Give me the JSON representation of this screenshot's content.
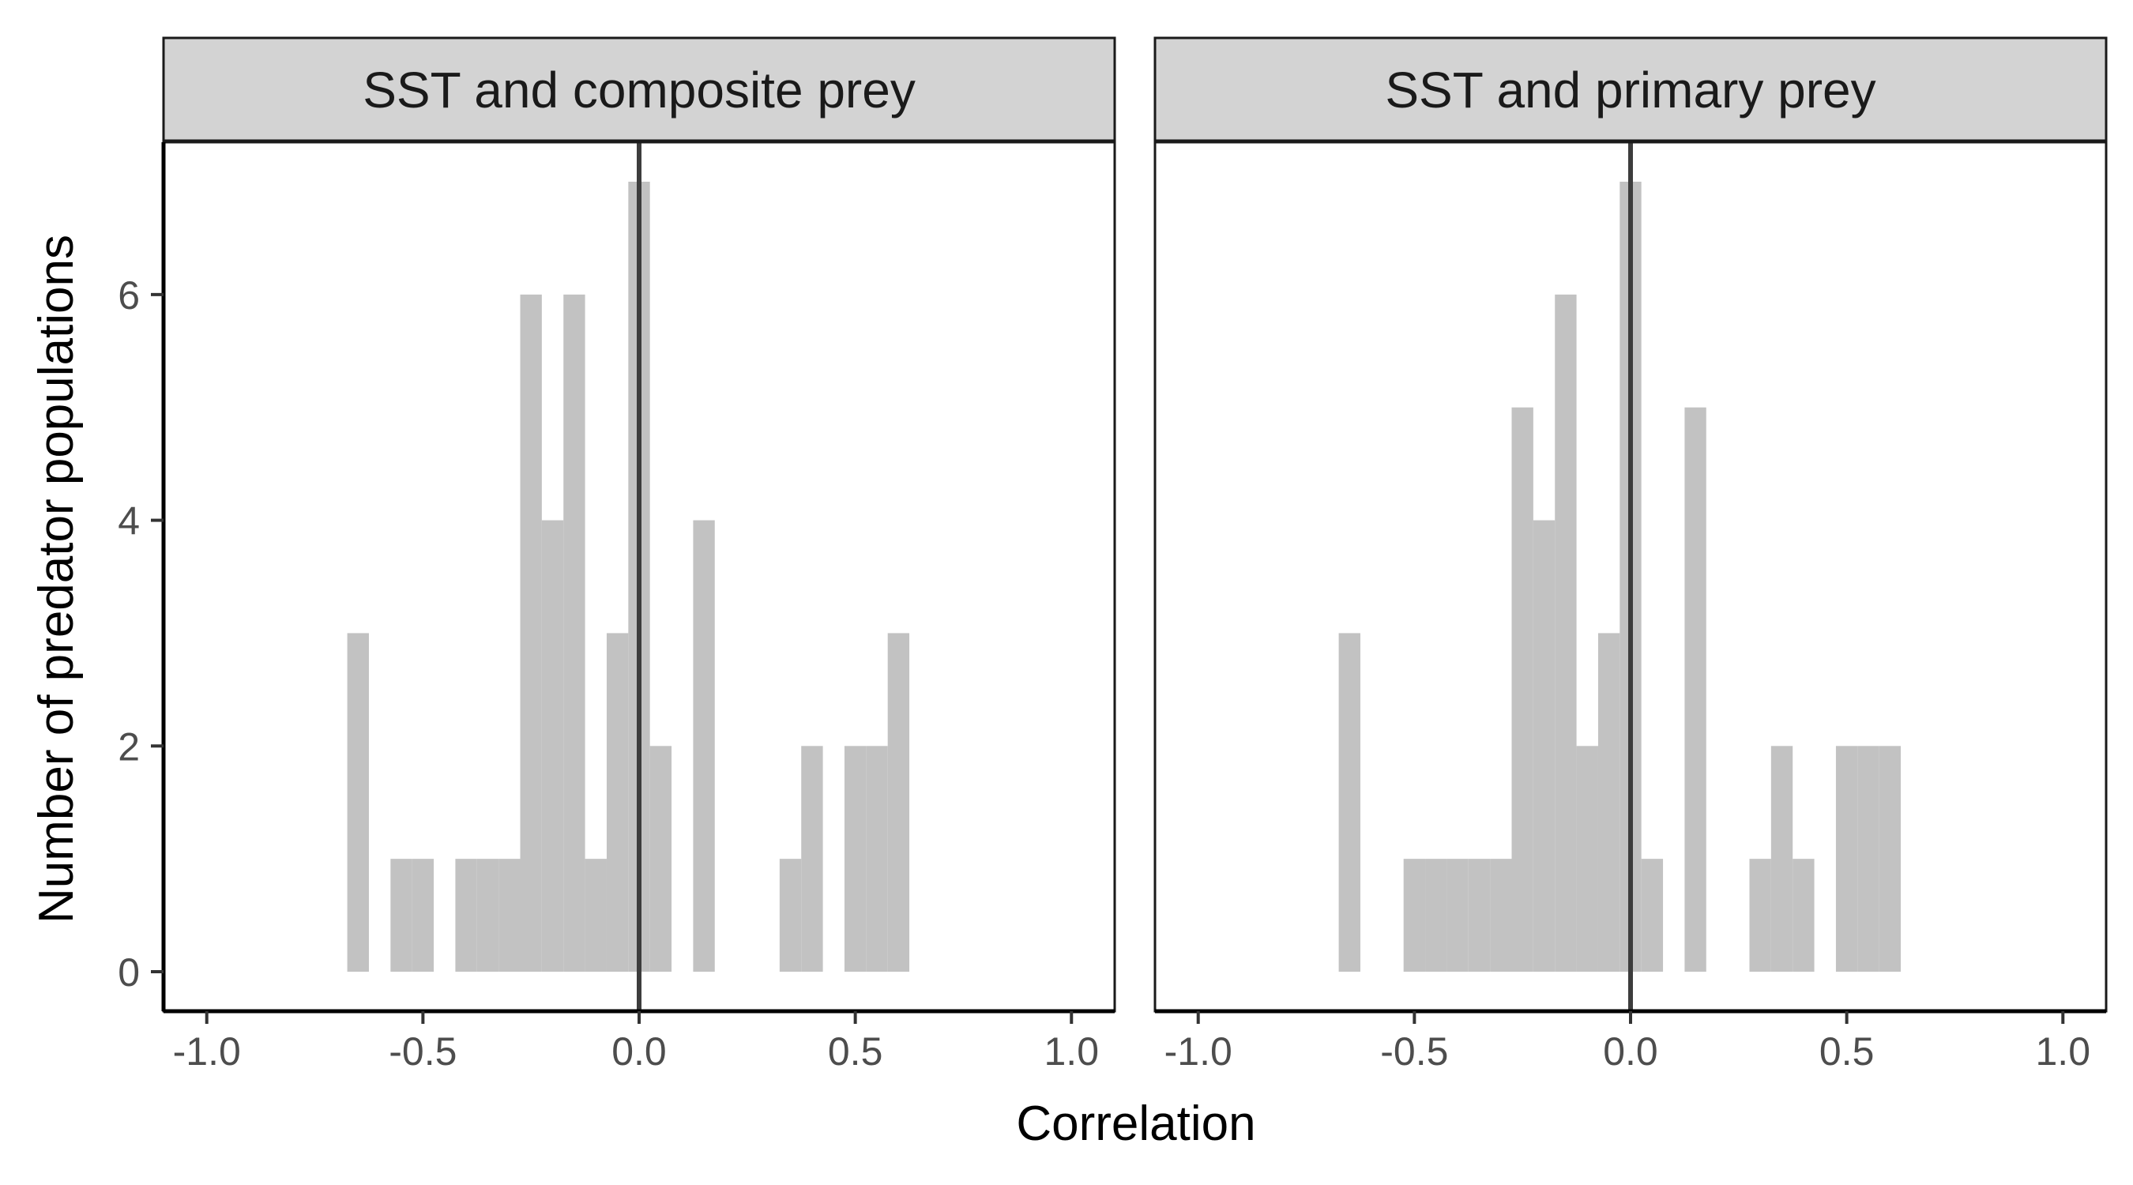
{
  "chart_data": [
    {
      "type": "bar",
      "title": "SST and composite prey",
      "xlabel": "Correlation",
      "ylabel": "Number of predator populations",
      "xlim": [
        -1.1,
        1.1
      ],
      "ylim": [
        -0.35,
        7.35
      ],
      "x_ticks": [
        "-1.0",
        "-0.5",
        "0.0",
        "0.5",
        "1.0"
      ],
      "y_ticks": [
        "0",
        "2",
        "4",
        "6"
      ],
      "bin_width": 0.05,
      "bin_centers": [
        -0.65,
        -0.55,
        -0.5,
        -0.4,
        -0.35,
        -0.3,
        -0.25,
        -0.2,
        -0.15,
        -0.1,
        -0.05,
        0.0,
        0.05,
        0.15,
        0.35,
        0.4,
        0.5,
        0.55,
        0.6
      ],
      "counts": [
        3,
        1,
        1,
        1,
        1,
        1,
        6,
        4,
        6,
        1,
        3,
        7,
        2,
        4,
        1,
        2,
        2,
        2,
        3
      ],
      "reference_line_x": 0
    },
    {
      "type": "bar",
      "title": "SST and primary prey",
      "xlabel": "Correlation",
      "ylabel": "Number of predator populations",
      "xlim": [
        -1.1,
        1.1
      ],
      "ylim": [
        -0.35,
        7.35
      ],
      "x_ticks": [
        "-1.0",
        "-0.5",
        "0.0",
        "0.5",
        "1.0"
      ],
      "y_ticks": [
        "0",
        "2",
        "4",
        "6"
      ],
      "bin_width": 0.05,
      "bin_centers": [
        -0.65,
        -0.5,
        -0.45,
        -0.4,
        -0.35,
        -0.3,
        -0.25,
        -0.2,
        -0.15,
        -0.1,
        -0.05,
        0.0,
        0.05,
        0.15,
        0.3,
        0.35,
        0.4,
        0.5,
        0.55,
        0.6
      ],
      "counts": [
        3,
        1,
        1,
        1,
        1,
        1,
        5,
        4,
        6,
        2,
        3,
        7,
        1,
        5,
        1,
        2,
        1,
        2,
        2,
        2
      ],
      "reference_line_x": 0
    }
  ],
  "shared": {
    "xlabel": "Correlation",
    "ylabel": "Number of predator populations"
  }
}
